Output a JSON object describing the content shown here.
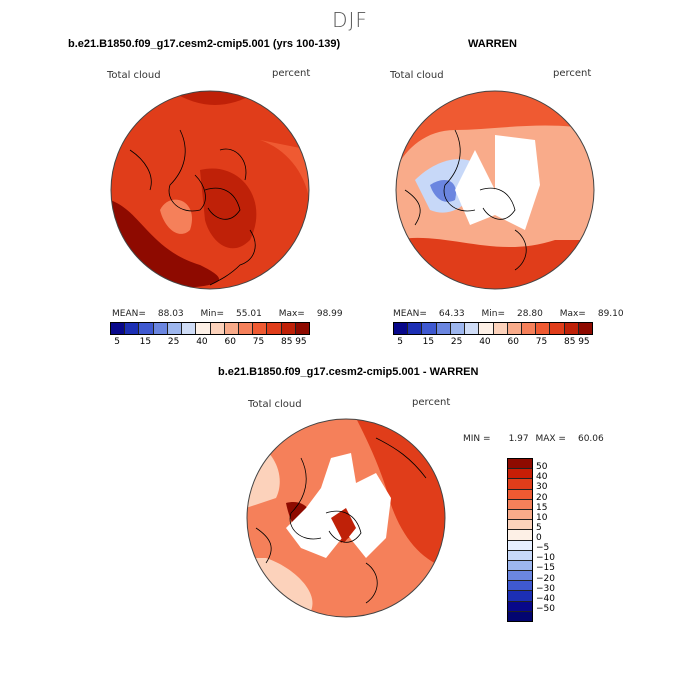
{
  "figure": {
    "season": "DJF"
  },
  "panels": [
    {
      "title": "b.e21.B1850.f09_g17.cesm2-cmip5.001 (yrs 100-139)",
      "variable": "Total cloud",
      "units": "percent",
      "stats": {
        "mean_label": "MEAN=",
        "mean": "88.03",
        "min_label": "Min=",
        "min": "55.01",
        "max_label": "Max=",
        "max": "98.99"
      }
    },
    {
      "title": "WARREN",
      "variable": "Total cloud",
      "units": "percent",
      "stats": {
        "mean_label": "MEAN=",
        "mean": "64.33",
        "min_label": "Min=",
        "min": "28.80",
        "max_label": "Max=",
        "max": "89.10"
      }
    },
    {
      "title": "b.e21.B1850.f09_g17.cesm2-cmip5.001 - WARREN",
      "variable": "Total cloud",
      "units": "percent",
      "stats": {
        "min_label": "MIN =",
        "min": "1.97",
        "max_label": "MAX =",
        "max": "60.06"
      }
    }
  ],
  "colorbar_main": {
    "colors": [
      "#08088a",
      "#1c2fb4",
      "#3f59d0",
      "#6b86e0",
      "#9db6ee",
      "#cfdcf6",
      "#fdf0e6",
      "#fcd2bb",
      "#f9ab8a",
      "#f5805a",
      "#ef5a32",
      "#e03d1a",
      "#bf2108",
      "#8e0a00"
    ],
    "ticks": [
      "5",
      "15",
      "25",
      "40",
      "60",
      "75",
      "85",
      "95"
    ]
  },
  "colorbar_diff": {
    "colors": [
      "#8e0a00",
      "#c81e06",
      "#e03d1a",
      "#ef5a32",
      "#f5805a",
      "#f9ab8a",
      "#fcd2bb",
      "#fdf0e6",
      "#e6efff",
      "#c7d8f8",
      "#9db6ee",
      "#6b86e0",
      "#3f59d0",
      "#1c2fb4",
      "#08088a",
      "#030570"
    ],
    "ticks": [
      "50",
      "40",
      "30",
      "20",
      "15",
      "10",
      "5",
      "0",
      "−5",
      "−10",
      "−15",
      "−20",
      "−30",
      "−40",
      "−50"
    ]
  },
  "chart_data": [
    {
      "type": "heatmap",
      "projection": "polar-stereographic-north",
      "title": "b.e21.B1850.f09_g17.cesm2-cmip5.001 (yrs 100-139)",
      "variable": "Total cloud",
      "units": "percent",
      "mean": 88.03,
      "min": 55.01,
      "max": 98.99,
      "levels": [
        5,
        10,
        15,
        20,
        25,
        30,
        40,
        50,
        60,
        70,
        75,
        80,
        85,
        90,
        95
      ]
    },
    {
      "type": "heatmap",
      "projection": "polar-stereographic-north",
      "title": "WARREN",
      "variable": "Total cloud",
      "units": "percent",
      "mean": 64.33,
      "min": 28.8,
      "max": 89.1,
      "levels": [
        5,
        10,
        15,
        20,
        25,
        30,
        40,
        50,
        60,
        70,
        75,
        80,
        85,
        90,
        95
      ]
    },
    {
      "type": "heatmap",
      "projection": "polar-stereographic-north",
      "title": "b.e21.B1850.f09_g17.cesm2-cmip5.001 - WARREN",
      "variable": "Total cloud",
      "units": "percent",
      "min": 1.97,
      "max": 60.06,
      "levels": [
        -50,
        -40,
        -30,
        -20,
        -15,
        -10,
        -5,
        0,
        5,
        10,
        15,
        20,
        30,
        40,
        50
      ]
    }
  ]
}
